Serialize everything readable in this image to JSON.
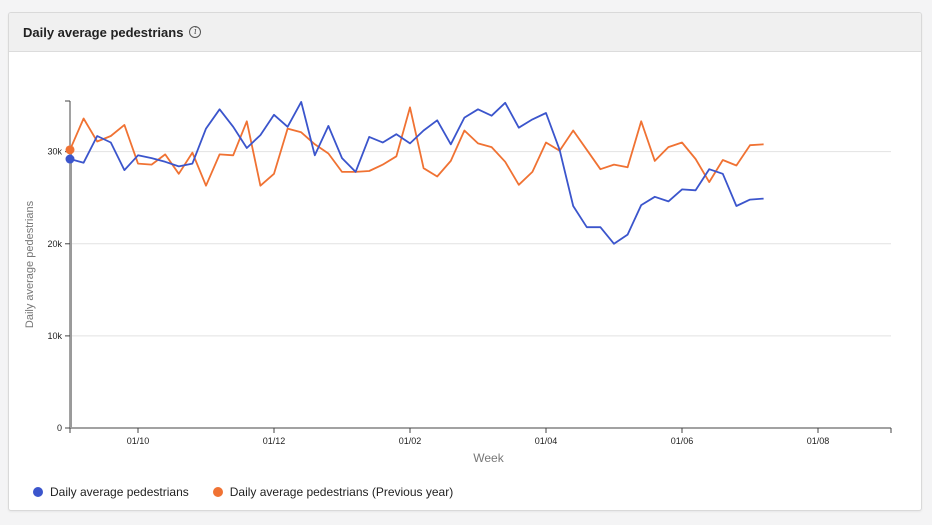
{
  "card": {
    "title": "Daily average pedestrians",
    "info_icon": "info-icon"
  },
  "colors": {
    "current": "#3b55cc",
    "previous": "#f07233",
    "grid": "#e2e2e2",
    "axis": "#444444"
  },
  "chart_data": {
    "type": "line",
    "xlabel": "Week",
    "ylabel": "Daily average pedestrians",
    "ylim": [
      0,
      35500
    ],
    "yticks": [
      0,
      10000,
      20000,
      30000
    ],
    "ytick_labels": [
      "0",
      "10k",
      "20k",
      "30k"
    ],
    "xtick_labels": [
      "01/10",
      "01/12",
      "01/02",
      "01/04",
      "01/06",
      "01/08"
    ],
    "xtick_positions": [
      5,
      15,
      25,
      35,
      45,
      55
    ],
    "grid": true,
    "legend_position": "bottom-left",
    "series": [
      {
        "name": "Daily average pedestrians",
        "color": "#3b55cc",
        "values": [
          29200,
          28800,
          31700,
          31000,
          28000,
          29600,
          29300,
          28900,
          28400,
          28700,
          32500,
          34600,
          32700,
          30400,
          31800,
          34000,
          32700,
          35400,
          29600,
          32800,
          29300,
          27800,
          31600,
          31000,
          31900,
          30900,
          32300,
          33400,
          30800,
          33700,
          34600,
          33900,
          35300,
          32600,
          33500,
          34200,
          30200,
          24100,
          21800,
          21800,
          20000,
          21000,
          24200,
          25100,
          24600,
          25900,
          25800,
          28100,
          27600,
          24100,
          24800,
          24900
        ]
      },
      {
        "name": "Daily average pedestrians (Previous year)",
        "color": "#f07233",
        "values": [
          30200,
          33600,
          31100,
          31700,
          32900,
          28700,
          28600,
          29700,
          27600,
          29900,
          26300,
          29700,
          29600,
          33300,
          26300,
          27600,
          32500,
          32100,
          30800,
          29800,
          27800,
          27800,
          27900,
          28600,
          29500,
          34800,
          28200,
          27300,
          29000,
          32300,
          30900,
          30500,
          28900,
          26400,
          27800,
          31000,
          30100,
          32300,
          30200,
          28100,
          28600,
          28300,
          33300,
          29000,
          30500,
          31000,
          29200,
          26700,
          29100,
          28500,
          30700,
          30800
        ]
      }
    ]
  }
}
